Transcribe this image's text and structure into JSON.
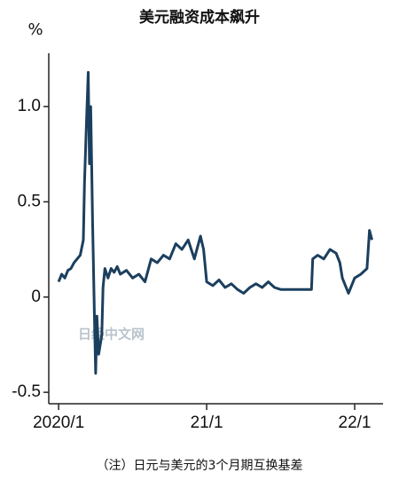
{
  "chart_data": {
    "type": "line",
    "title": "美元融资成本飙升",
    "y_unit": "%",
    "note": "（注）日元与美元的3个月期互换基差",
    "watermark": "日经中文网",
    "x": [
      0,
      0.25,
      0.5,
      0.75,
      1,
      1.25,
      1.5,
      1.75,
      2,
      2.1,
      2.25,
      2.4,
      2.5,
      2.6,
      2.75,
      2.9,
      3,
      3.1,
      3.25,
      3.5,
      3.6,
      3.75,
      4,
      4.25,
      4.5,
      4.75,
      5,
      5.5,
      6,
      6.5,
      7,
      7.5,
      8,
      8.5,
      9,
      9.5,
      10,
      10.5,
      11,
      11.5,
      11.75,
      12,
      12.5,
      13,
      13.5,
      14,
      14.5,
      15,
      15.5,
      16,
      16.5,
      17,
      17.5,
      18,
      19,
      20,
      20.5,
      20.6,
      21,
      21.5,
      22,
      22.5,
      22.8,
      23,
      23.5,
      24,
      24.5,
      25,
      25.2,
      25.4
    ],
    "series": [
      {
        "name": "基差",
        "color": "#1b3f5e",
        "values": [
          0.08,
          0.12,
          0.1,
          0.14,
          0.15,
          0.18,
          0.2,
          0.22,
          0.3,
          0.6,
          0.9,
          1.18,
          0.7,
          1.0,
          0.4,
          -0.1,
          -0.4,
          -0.1,
          -0.3,
          -0.2,
          0.05,
          0.15,
          0.1,
          0.15,
          0.13,
          0.16,
          0.12,
          0.14,
          0.1,
          0.12,
          0.08,
          0.2,
          0.18,
          0.22,
          0.2,
          0.28,
          0.25,
          0.3,
          0.2,
          0.32,
          0.25,
          0.08,
          0.06,
          0.09,
          0.05,
          0.07,
          0.04,
          0.02,
          0.05,
          0.07,
          0.05,
          0.08,
          0.05,
          0.04,
          0.04,
          0.04,
          0.04,
          0.2,
          0.22,
          0.2,
          0.25,
          0.23,
          0.18,
          0.1,
          0.02,
          0.1,
          0.12,
          0.15,
          0.35,
          0.3
        ]
      }
    ],
    "xlim": [
      -0.8,
      26.3
    ],
    "xticks": [
      {
        "value": 0,
        "label": "2020/1"
      },
      {
        "value": 12,
        "label": "21/1"
      },
      {
        "value": 24,
        "label": "22/1"
      }
    ],
    "ylim": [
      -0.56,
      1.28
    ],
    "yticks": [
      {
        "value": -0.5,
        "label": "-0.5"
      },
      0,
      {
        "value": 0.5,
        "label": "0.5"
      },
      {
        "value": 1,
        "label": "1.0"
      }
    ],
    "grid": false
  }
}
